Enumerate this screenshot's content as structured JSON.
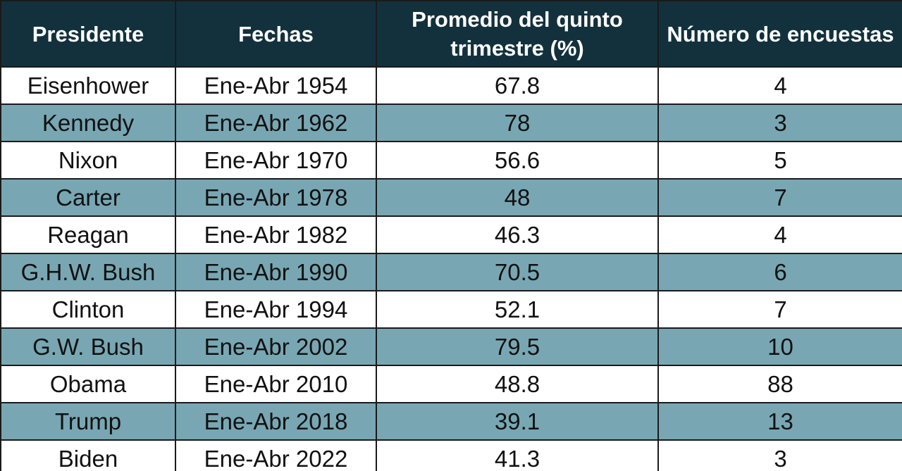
{
  "table": {
    "headers": [
      "Presidente",
      "Fechas",
      "Promedio del quinto trimestre (%)",
      "Número de encuestas"
    ],
    "rows": [
      [
        "Eisenhower",
        "Ene-Abr 1954",
        "67.8",
        "4"
      ],
      [
        "Kennedy",
        "Ene-Abr 1962",
        "78",
        "3"
      ],
      [
        "Nixon",
        "Ene-Abr 1970",
        "56.6",
        "5"
      ],
      [
        "Carter",
        "Ene-Abr 1978",
        "48",
        "7"
      ],
      [
        "Reagan",
        "Ene-Abr 1982",
        "46.3",
        "4"
      ],
      [
        "G.H.W. Bush",
        "Ene-Abr 1990",
        "70.5",
        "6"
      ],
      [
        "Clinton",
        "Ene-Abr 1994",
        "52.1",
        "7"
      ],
      [
        "G.W. Bush",
        "Ene-Abr 2002",
        "79.5",
        "10"
      ],
      [
        "Obama",
        "Ene-Abr 2010",
        "48.8",
        "88"
      ],
      [
        "Trump",
        "Ene-Abr 2018",
        "39.1",
        "13"
      ],
      [
        "Biden",
        "Ene-Abr 2022",
        "41.3",
        "3"
      ]
    ]
  },
  "colors": {
    "header_bg": "#12313d",
    "header_text": "#ffffff",
    "row_stripe": "#78a7b3",
    "row_plain": "#ffffff",
    "border": "#1a1a1a"
  }
}
